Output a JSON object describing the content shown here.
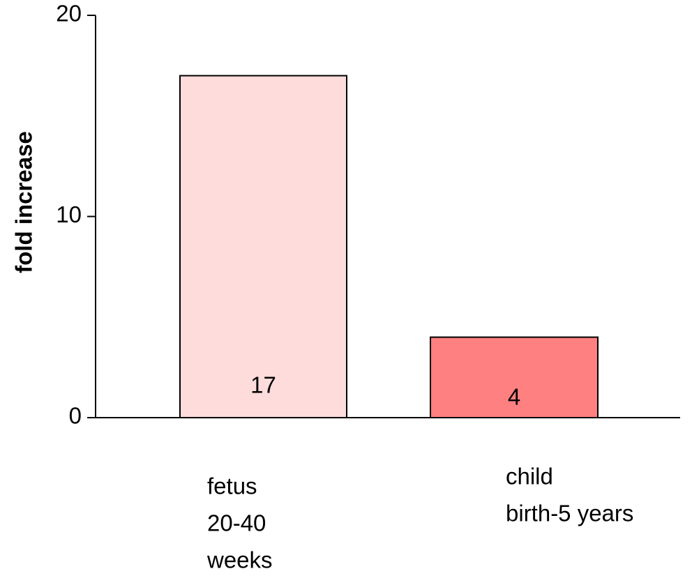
{
  "chart_data": {
    "type": "bar",
    "y_label": "fold increase",
    "categories": [
      [
        "fetus",
        "20-40",
        "weeks"
      ],
      [
        "child",
        "birth-5 years"
      ]
    ],
    "values": [
      17,
      4
    ],
    "colors": [
      "#ffdcdc",
      "#ff8080"
    ],
    "ylim": [
      0,
      20
    ],
    "yticks": [
      0,
      10,
      20
    ]
  }
}
